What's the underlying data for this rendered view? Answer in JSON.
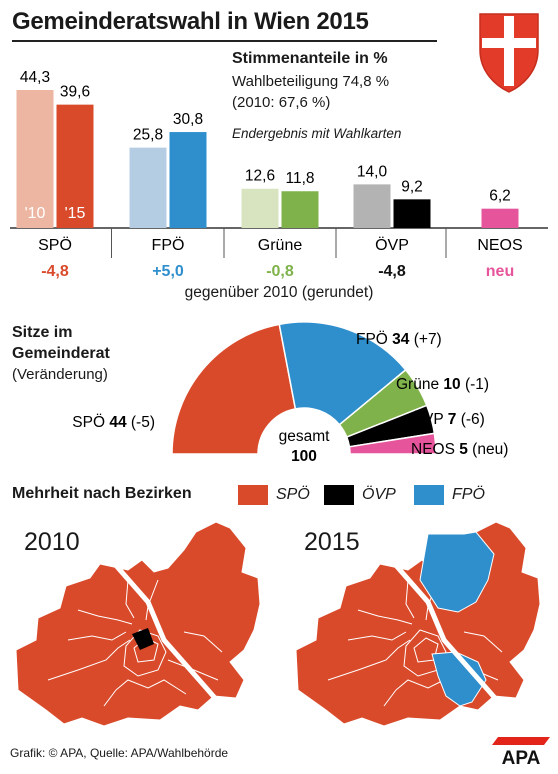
{
  "header": {
    "title": "Gemeinderatswahl in Wien 2015",
    "subtitle": "Stimmenanteile in %",
    "turnout": "Wahlbeteiligung 74,8 %",
    "turnout_prev": "(2010: 67,6 %)",
    "note": "Endergebnis mit Wahlkarten"
  },
  "colors": {
    "spoe": "#d94a2b",
    "spoe_light": "#ecb6a2",
    "fpoe": "#2f8fcd",
    "fpoe_light": "#b4cde3",
    "gruene": "#7fb24a",
    "gruene_light": "#d8e4c0",
    "oevp": "#000000",
    "oevp_light": "#b3b3b3",
    "neos": "#e6559c"
  },
  "chart_data": [
    {
      "type": "bar",
      "title": "Stimmenanteile in %",
      "categories": [
        "SPÖ",
        "FPÖ",
        "Grüne",
        "ÖVP",
        "NEOS"
      ],
      "series": [
        {
          "name": "'10",
          "values": [
            44.3,
            25.8,
            12.6,
            14.0,
            null
          ]
        },
        {
          "name": "'15",
          "values": [
            39.6,
            30.8,
            11.8,
            9.2,
            6.2
          ]
        }
      ],
      "value_labels": {
        "y2010": [
          "44,3",
          "25,8",
          "12,6",
          "14,0",
          ""
        ],
        "y2015": [
          "39,6",
          "30,8",
          "11,8",
          "9,2",
          "6,2"
        ]
      },
      "changes": [
        "-4,8",
        "+5,0",
        "-0,8",
        "-4,8",
        "neu"
      ],
      "change_caption": "gegenüber 2010 (gerundet)",
      "ylim": [
        0,
        44.3
      ]
    },
    {
      "type": "pie",
      "title": "Sitze im Gemeinderat",
      "subtitle": "(Veränderung)",
      "center_label": "gesamt",
      "center_value": "100",
      "slices": [
        {
          "party": "SPÖ",
          "seats": 44,
          "seats_text": "44",
          "change": "(-5)"
        },
        {
          "party": "FPÖ",
          "seats": 34,
          "seats_text": "34",
          "change": "(+7)"
        },
        {
          "party": "Grüne",
          "seats": 10,
          "seats_text": "10",
          "change": "(-1)"
        },
        {
          "party": "ÖVP",
          "seats": 7,
          "seats_text": "7",
          "change": "(-6)"
        },
        {
          "party": "NEOS",
          "seats": 5,
          "seats_text": "5",
          "change": "(neu)"
        }
      ]
    }
  ],
  "majority": {
    "title": "Mehrheit nach Bezirken",
    "legend": [
      "SPÖ",
      "ÖVP",
      "FPÖ"
    ],
    "year_left": "2010",
    "year_right": "2015"
  },
  "footer": {
    "source": "Grafik: © APA, Quelle: APA/Wahlbehörde",
    "logo": "APA"
  }
}
